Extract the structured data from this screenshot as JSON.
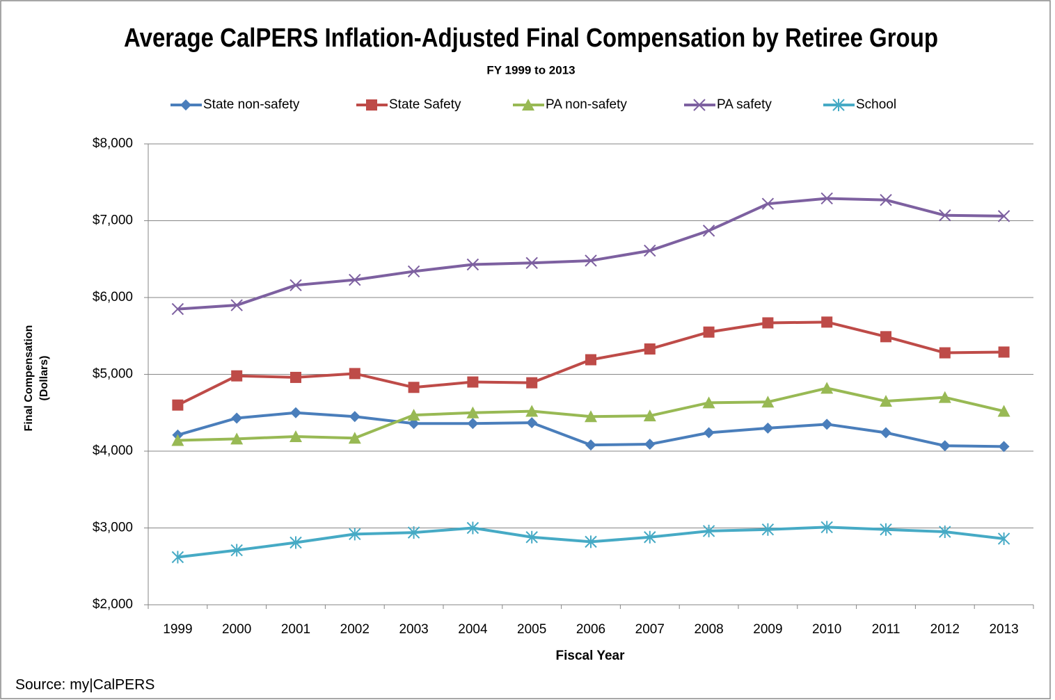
{
  "chart_data": {
    "type": "line",
    "title": "Average CalPERS Inflation-Adjusted Final Compensation by Retiree Group",
    "subtitle": "FY 1999 to 2013",
    "xlabel": "Fiscal Year",
    "ylabel": [
      "Final Compensation",
      "(Dollars)"
    ],
    "source": "Source: my|CalPERS",
    "categories": [
      "1999",
      "2000",
      "2001",
      "2002",
      "2003",
      "2004",
      "2005",
      "2006",
      "2007",
      "2008",
      "2009",
      "2010",
      "2011",
      "2012",
      "2013"
    ],
    "series": [
      {
        "name": "State non-safety",
        "color": "#4a7ebb",
        "marker": "diamond",
        "values": [
          4210,
          4430,
          4500,
          4450,
          4360,
          4360,
          4370,
          4080,
          4090,
          4240,
          4300,
          4350,
          4240,
          4070,
          4060
        ]
      },
      {
        "name": "State Safety",
        "color": "#be4b48",
        "marker": "square",
        "values": [
          4600,
          4980,
          4960,
          5010,
          4830,
          4900,
          4890,
          5190,
          5330,
          5550,
          5670,
          5680,
          5490,
          5280,
          5290
        ]
      },
      {
        "name": "PA non-safety",
        "color": "#98b954",
        "marker": "triangle",
        "values": [
          4140,
          4160,
          4190,
          4170,
          4470,
          4500,
          4520,
          4450,
          4460,
          4630,
          4640,
          4820,
          4650,
          4700,
          4520
        ]
      },
      {
        "name": "PA safety",
        "color": "#7d60a0",
        "marker": "x",
        "values": [
          5850,
          5900,
          6160,
          6230,
          6340,
          6430,
          6450,
          6480,
          6610,
          6870,
          7220,
          7290,
          7270,
          7070,
          7060
        ]
      },
      {
        "name": "School",
        "color": "#46aac5",
        "marker": "star",
        "values": [
          2620,
          2710,
          2810,
          2920,
          2940,
          3000,
          2880,
          2820,
          2880,
          2960,
          2980,
          3010,
          2980,
          2950,
          2860
        ]
      }
    ],
    "ylim": [
      2000,
      8000
    ],
    "yticks": [
      {
        "value": 2000,
        "label": "$2,000"
      },
      {
        "value": 3000,
        "label": "$3,000"
      },
      {
        "value": 4000,
        "label": "$4,000"
      },
      {
        "value": 5000,
        "label": "$5,000"
      },
      {
        "value": 6000,
        "label": "$6,000"
      },
      {
        "value": 7000,
        "label": "$7,000"
      },
      {
        "value": 8000,
        "label": "$8,000"
      }
    ],
    "grid": true,
    "legend": "top"
  }
}
